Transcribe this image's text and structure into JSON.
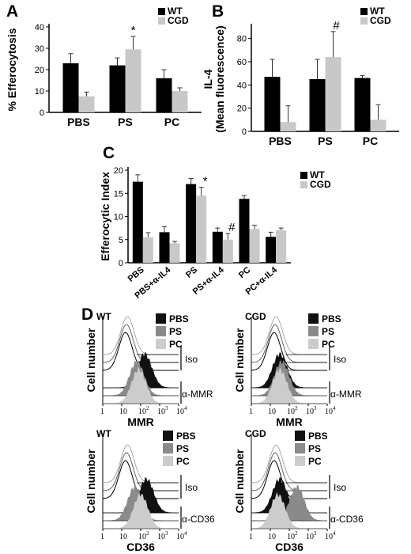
{
  "colors": {
    "wt": "#000000",
    "cgd": "#c8c8c8",
    "pbs": "#111111",
    "ps": "#8a8a8a",
    "pc": "#cccccc"
  },
  "chart_data": [
    {
      "panel": "A",
      "type": "bar",
      "ylabel": "% Efferocytosis",
      "ylim": [
        0,
        40
      ],
      "yticks": [
        "0",
        "10",
        "20",
        "30",
        "40"
      ],
      "categories": [
        "PBS",
        "PS",
        "PC"
      ],
      "legend": [
        "WT",
        "CGD"
      ],
      "series": [
        {
          "name": "WT",
          "values": [
            23,
            22,
            16
          ],
          "errors": [
            4.5,
            3.5,
            4
          ]
        },
        {
          "name": "CGD",
          "values": [
            7.5,
            29.5,
            10
          ],
          "errors": [
            2,
            6,
            1.5
          ]
        }
      ],
      "annotations": [
        {
          "category": "PS",
          "series": "CGD",
          "text": "*"
        }
      ]
    },
    {
      "panel": "B",
      "type": "bar",
      "ylabel": "IL-4",
      "ylabel2": "(Mean fluorescence)",
      "ylim": [
        0,
        90
      ],
      "yticks": [
        "0",
        "20",
        "40",
        "60",
        "80"
      ],
      "categories": [
        "PBS",
        "PS",
        "PC"
      ],
      "legend": [
        "WT",
        "CGD"
      ],
      "series": [
        {
          "name": "WT",
          "values": [
            47,
            45,
            46
          ],
          "errors": [
            15,
            17,
            2
          ]
        },
        {
          "name": "CGD",
          "values": [
            8,
            64,
            10
          ],
          "errors": [
            14,
            22,
            13
          ]
        }
      ],
      "annotations": [
        {
          "category": "PS",
          "series": "CGD",
          "text": "#"
        }
      ]
    },
    {
      "panel": "C",
      "type": "bar",
      "ylabel": "Efferocytic Index",
      "ylim": [
        0,
        20
      ],
      "yticks": [
        "0",
        "5",
        "10",
        "15",
        "20"
      ],
      "categories": [
        "PBS",
        "PBS+α-IL4",
        "PS",
        "PS+α-IL4",
        "PC",
        "PC+α-IL4"
      ],
      "legend": [
        "WT",
        "CGD"
      ],
      "series": [
        {
          "name": "WT",
          "values": [
            17.5,
            6.6,
            17,
            6.7,
            13.8,
            5.6
          ],
          "errors": [
            1.5,
            1.2,
            1.2,
            0.8,
            0.7,
            1
          ]
        },
        {
          "name": "CGD",
          "values": [
            5.5,
            4.2,
            14.5,
            5,
            7.3,
            7
          ],
          "errors": [
            1,
            0.4,
            1.8,
            1.3,
            0.8,
            0.5
          ]
        }
      ],
      "annotations": [
        {
          "category": "PS",
          "series": "CGD",
          "text": "*"
        },
        {
          "category": "PS+α-IL4",
          "series": "CGD",
          "text": "#"
        }
      ]
    }
  ],
  "histograms": {
    "panel": "D",
    "legend": [
      "PBS",
      "PS",
      "PC"
    ],
    "ylabel": "Cell number",
    "iso_label": "Iso",
    "xticks": [
      "1",
      "10",
      "10",
      "10",
      "10"
    ],
    "xtick_exps": [
      "",
      "",
      "2",
      "3",
      "4"
    ],
    "plots": [
      {
        "group": "WT",
        "xlabel": "MMR",
        "ab_label": "α-MMR",
        "peaks": {
          "pbs": 2.2,
          "ps": 1.8,
          "pc": 1.9
        }
      },
      {
        "group": "CGD",
        "xlabel": "MMR",
        "ab_label": "α-MMR",
        "peaks": {
          "pbs": 1.5,
          "ps": 1.6,
          "pc": 1.5
        }
      },
      {
        "group": "WT",
        "xlabel": "CD36",
        "ab_label": "α-CD36",
        "peaks": {
          "pbs": 2.3,
          "ps": 1.7,
          "pc": 2.0
        }
      },
      {
        "group": "CGD",
        "xlabel": "CD36",
        "ab_label": "α-CD36",
        "peaks": {
          "pbs": 1.5,
          "ps": 2.4,
          "pc": 1.4
        }
      }
    ]
  }
}
